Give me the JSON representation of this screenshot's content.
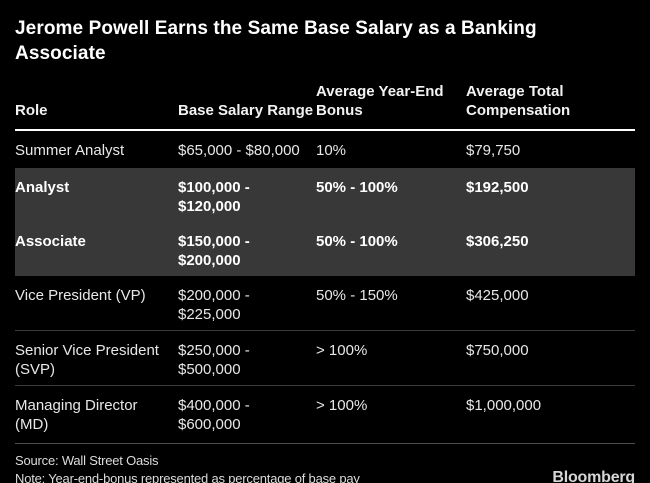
{
  "colors": {
    "background": "#000000",
    "highlight_row_background": "#383838",
    "header_rule": "#ffffff",
    "row_separator": "#3c3c3c",
    "text_primary": "#ffffff",
    "text_body": "#e8e8e8"
  },
  "chart_data": {
    "type": "table",
    "title": "Jerome Powell Earns the Same Base Salary as a Banking Associate",
    "columns": [
      "Role",
      "Base Salary Range",
      "Average Year-End Bonus",
      "Average Total Compensation"
    ],
    "rows": [
      {
        "role": "Summer Analyst",
        "base_salary_range": "$65,000 - $80,000",
        "avg_year_end_bonus": "10%",
        "avg_total_compensation": "$79,750",
        "highlighted": false
      },
      {
        "role": "Analyst",
        "base_salary_range": "$100,000 - $120,000",
        "avg_year_end_bonus": "50% - 100%",
        "avg_total_compensation": "$192,500",
        "highlighted": true
      },
      {
        "role": "Associate",
        "base_salary_range": "$150,000 - $200,000",
        "avg_year_end_bonus": "50% - 100%",
        "avg_total_compensation": "$306,250",
        "highlighted": true
      },
      {
        "role": "Vice President (VP)",
        "base_salary_range": "$200,000 - $225,000",
        "avg_year_end_bonus": "50% - 150%",
        "avg_total_compensation": "$425,000",
        "highlighted": false
      },
      {
        "role": "Senior Vice President (SVP)",
        "base_salary_range": "$250,000 - $500,000",
        "avg_year_end_bonus": "> 100%",
        "avg_total_compensation": "$750,000",
        "highlighted": false
      },
      {
        "role": "Managing Director (MD)",
        "base_salary_range": "$400,000 - $600,000",
        "avg_year_end_bonus": "> 100%",
        "avg_total_compensation": "$1,000,000",
        "highlighted": false
      }
    ],
    "legend": null,
    "grid": false
  },
  "footer": {
    "source": "Source: Wall Street Oasis",
    "note": "Note: Year-end-bonus represented as percentage of base pay",
    "brand": "Bloomberg"
  }
}
